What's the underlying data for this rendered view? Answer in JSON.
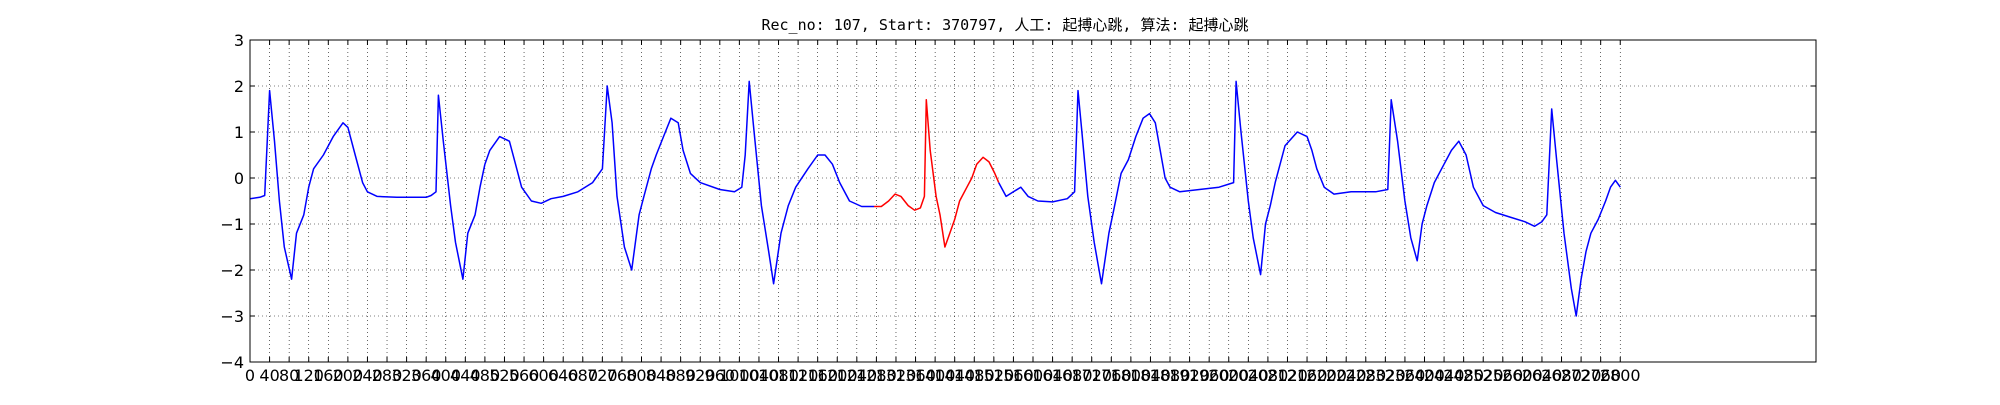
{
  "chart_data": {
    "type": "line",
    "title": "Rec_no: 107, Start: 370797, 人工: 起搏心跳, 算法: 起搏心跳",
    "xlabel": "",
    "ylabel": "",
    "xlim": [
      0,
      3200
    ],
    "ylim": [
      -4,
      3
    ],
    "grid": true,
    "grid_style": "dotted",
    "x_ticks": [
      0,
      40,
      80,
      120,
      160,
      200,
      240,
      280,
      320,
      360,
      400,
      440,
      480,
      520,
      560,
      600,
      640,
      680,
      720,
      760,
      800,
      840,
      880,
      920,
      960,
      1000,
      1040,
      1080,
      1120,
      1160,
      1200,
      1240,
      1280,
      1320,
      1360,
      1400,
      1440,
      1480,
      1520,
      1560,
      1600,
      1640,
      1680,
      1720,
      1760,
      1800,
      1840,
      1880,
      1920,
      1960,
      2000,
      2040,
      2080,
      2120,
      2160,
      2200,
      2240,
      2280,
      2320,
      2360,
      2400,
      2440,
      2480,
      2520,
      2560,
      2600,
      2640,
      2680,
      2720,
      2760,
      2800
    ],
    "y_ticks": [
      -4,
      -3,
      -2,
      -1,
      0,
      1,
      2,
      3
    ],
    "series": [
      {
        "color": "#0000ff",
        "points": [
          [
            0,
            -0.45
          ],
          [
            20,
            -0.42
          ],
          [
            30,
            -0.38
          ],
          [
            40,
            1.9
          ],
          [
            50,
            0.8
          ],
          [
            60,
            -0.5
          ],
          [
            70,
            -1.5
          ],
          [
            85,
            -2.2
          ],
          [
            95,
            -1.2
          ],
          [
            110,
            -0.8
          ],
          [
            120,
            -0.2
          ],
          [
            130,
            0.2
          ],
          [
            150,
            0.5
          ],
          [
            170,
            0.9
          ],
          [
            190,
            1.2
          ],
          [
            200,
            1.1
          ],
          [
            215,
            0.5
          ],
          [
            230,
            -0.1
          ],
          [
            240,
            -0.3
          ],
          [
            260,
            -0.4
          ],
          [
            300,
            -0.42
          ],
          [
            340,
            -0.42
          ],
          [
            360,
            -0.42
          ],
          [
            370,
            -0.38
          ],
          [
            380,
            -0.3
          ],
          [
            385,
            1.8
          ],
          [
            395,
            0.8
          ],
          [
            410,
            -0.6
          ],
          [
            420,
            -1.4
          ],
          [
            435,
            -2.2
          ],
          [
            445,
            -1.2
          ],
          [
            460,
            -0.8
          ],
          [
            470,
            -0.2
          ],
          [
            480,
            0.3
          ],
          [
            490,
            0.6
          ],
          [
            510,
            0.9
          ],
          [
            530,
            0.8
          ],
          [
            540,
            0.4
          ],
          [
            555,
            -0.2
          ],
          [
            575,
            -0.5
          ],
          [
            595,
            -0.55
          ],
          [
            615,
            -0.45
          ],
          [
            640,
            -0.4
          ],
          [
            670,
            -0.3
          ],
          [
            700,
            -0.1
          ],
          [
            720,
            0.2
          ],
          [
            730,
            2.0
          ],
          [
            740,
            1.2
          ],
          [
            750,
            -0.4
          ],
          [
            765,
            -1.5
          ],
          [
            780,
            -2.0
          ],
          [
            795,
            -0.8
          ],
          [
            805,
            -0.4
          ],
          [
            820,
            0.2
          ],
          [
            830,
            0.5
          ],
          [
            845,
            0.9
          ],
          [
            860,
            1.3
          ],
          [
            875,
            1.2
          ],
          [
            885,
            0.6
          ],
          [
            900,
            0.1
          ],
          [
            920,
            -0.1
          ],
          [
            960,
            -0.25
          ],
          [
            990,
            -0.3
          ],
          [
            1005,
            -0.2
          ],
          [
            1012,
            0.5
          ],
          [
            1020,
            2.1
          ],
          [
            1030,
            1.0
          ],
          [
            1045,
            -0.6
          ],
          [
            1060,
            -1.6
          ],
          [
            1070,
            -2.3
          ],
          [
            1085,
            -1.2
          ],
          [
            1100,
            -0.6
          ],
          [
            1115,
            -0.2
          ],
          [
            1140,
            0.2
          ],
          [
            1160,
            0.5
          ],
          [
            1175,
            0.5
          ],
          [
            1190,
            0.3
          ],
          [
            1205,
            -0.1
          ],
          [
            1225,
            -0.5
          ],
          [
            1250,
            -0.62
          ],
          [
            1275,
            -0.62
          ]
        ]
      },
      {
        "color": "#ff0000",
        "points": [
          [
            1275,
            -0.62
          ],
          [
            1290,
            -0.62
          ],
          [
            1305,
            -0.5
          ],
          [
            1318,
            -0.35
          ],
          [
            1330,
            -0.4
          ],
          [
            1345,
            -0.6
          ],
          [
            1358,
            -0.7
          ],
          [
            1370,
            -0.65
          ],
          [
            1378,
            -0.4
          ],
          [
            1382,
            1.7
          ],
          [
            1390,
            0.6
          ],
          [
            1402,
            -0.4
          ],
          [
            1410,
            -0.8
          ],
          [
            1420,
            -1.5
          ],
          [
            1430,
            -1.2
          ],
          [
            1440,
            -0.9
          ],
          [
            1450,
            -0.5
          ],
          [
            1465,
            -0.2
          ],
          [
            1475,
            0.0
          ],
          [
            1485,
            0.3
          ],
          [
            1498,
            0.45
          ],
          [
            1510,
            0.35
          ],
          [
            1522,
            0.1
          ],
          [
            1530,
            -0.1
          ]
        ]
      },
      {
        "color": "#0000ff",
        "points": [
          [
            1530,
            -0.1
          ],
          [
            1545,
            -0.4
          ],
          [
            1560,
            -0.3
          ],
          [
            1575,
            -0.2
          ],
          [
            1590,
            -0.4
          ],
          [
            1610,
            -0.5
          ],
          [
            1640,
            -0.52
          ],
          [
            1670,
            -0.45
          ],
          [
            1685,
            -0.3
          ],
          [
            1692,
            1.9
          ],
          [
            1700,
            1.0
          ],
          [
            1712,
            -0.4
          ],
          [
            1725,
            -1.4
          ],
          [
            1740,
            -2.3
          ],
          [
            1755,
            -1.2
          ],
          [
            1765,
            -0.7
          ],
          [
            1780,
            0.1
          ],
          [
            1795,
            0.4
          ],
          [
            1810,
            0.9
          ],
          [
            1825,
            1.3
          ],
          [
            1838,
            1.4
          ],
          [
            1850,
            1.2
          ],
          [
            1860,
            0.6
          ],
          [
            1870,
            0.0
          ],
          [
            1880,
            -0.2
          ],
          [
            1900,
            -0.3
          ],
          [
            1940,
            -0.25
          ],
          [
            1980,
            -0.2
          ],
          [
            2010,
            -0.1
          ],
          [
            2015,
            2.1
          ],
          [
            2025,
            1.0
          ],
          [
            2040,
            -0.5
          ],
          [
            2050,
            -1.3
          ],
          [
            2065,
            -2.1
          ],
          [
            2075,
            -1.0
          ],
          [
            2085,
            -0.6
          ],
          [
            2095,
            -0.1
          ],
          [
            2105,
            0.3
          ],
          [
            2115,
            0.7
          ],
          [
            2140,
            1.0
          ],
          [
            2160,
            0.9
          ],
          [
            2170,
            0.6
          ],
          [
            2180,
            0.2
          ],
          [
            2195,
            -0.2
          ],
          [
            2215,
            -0.35
          ],
          [
            2250,
            -0.3
          ],
          [
            2300,
            -0.3
          ],
          [
            2325,
            -0.25
          ],
          [
            2332,
            1.7
          ],
          [
            2345,
            0.8
          ],
          [
            2360,
            -0.5
          ],
          [
            2372,
            -1.3
          ],
          [
            2385,
            -1.8
          ],
          [
            2395,
            -1.0
          ],
          [
            2405,
            -0.6
          ],
          [
            2420,
            -0.1
          ],
          [
            2435,
            0.2
          ],
          [
            2455,
            0.6
          ],
          [
            2470,
            0.8
          ],
          [
            2485,
            0.5
          ],
          [
            2500,
            -0.2
          ],
          [
            2520,
            -0.6
          ],
          [
            2545,
            -0.75
          ],
          [
            2575,
            -0.85
          ],
          [
            2605,
            -0.95
          ],
          [
            2625,
            -1.05
          ],
          [
            2640,
            -0.95
          ],
          [
            2650,
            -0.8
          ],
          [
            2660,
            1.5
          ],
          [
            2670,
            0.4
          ],
          [
            2685,
            -1.2
          ],
          [
            2700,
            -2.4
          ],
          [
            2710,
            -3.0
          ],
          [
            2720,
            -2.2
          ],
          [
            2730,
            -1.6
          ],
          [
            2740,
            -1.2
          ],
          [
            2755,
            -0.9
          ],
          [
            2770,
            -0.5
          ],
          [
            2780,
            -0.2
          ],
          [
            2790,
            -0.05
          ],
          [
            2800,
            -0.2
          ]
        ]
      }
    ]
  }
}
